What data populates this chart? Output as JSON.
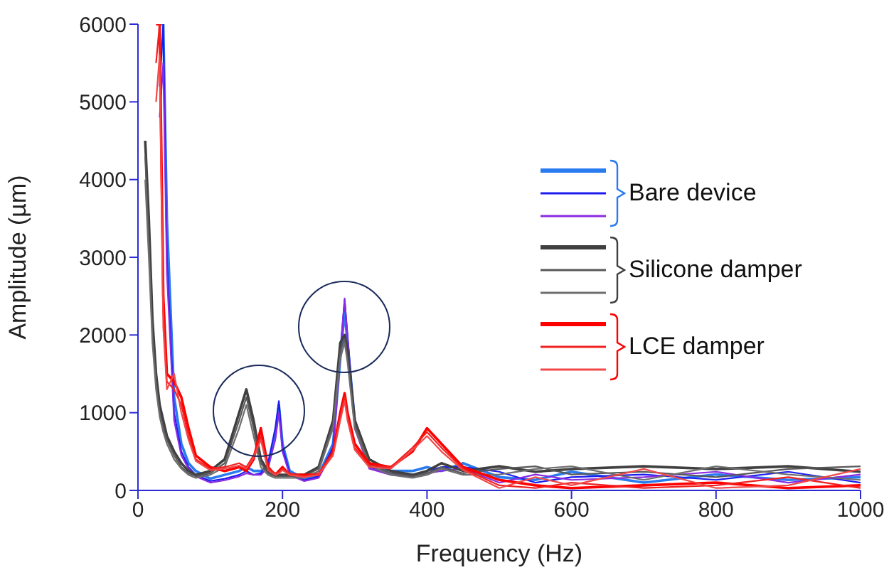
{
  "chart_data": {
    "type": "line",
    "xlabel": "Frequency (Hz)",
    "ylabel": "Amplitude (µm)",
    "x": [
      10,
      15,
      20,
      25,
      30,
      35,
      40,
      50,
      60,
      70,
      80,
      100,
      120,
      140,
      150,
      160,
      170,
      180,
      190,
      195,
      200,
      210,
      230,
      250,
      270,
      280,
      286,
      290,
      300,
      320,
      350,
      380,
      400,
      420,
      450,
      500,
      550,
      600,
      700,
      800,
      900,
      1000
    ],
    "xlim": [
      0,
      1000
    ],
    "xticks": [
      0,
      200,
      400,
      600,
      800,
      1000
    ],
    "ylim": [
      0,
      6000
    ],
    "yticks": [
      0,
      1000,
      2000,
      3000,
      4000,
      5000,
      6000
    ],
    "legend": "right",
    "series": [
      {
        "color": "#2a7bf0",
        "values": [
          null,
          null,
          null,
          null,
          6000,
          6000,
          3500,
          1200,
          600,
          350,
          250,
          150,
          200,
          250,
          300,
          250,
          250,
          300,
          700,
          1100,
          600,
          250,
          150,
          200,
          600,
          1700,
          2300,
          1900,
          900,
          350,
          250,
          250,
          300,
          250,
          350,
          170,
          135,
          240,
          100,
          205,
          135,
          170
        ]
      },
      {
        "name": "Bare device",
        "color": "#1c1cf0",
        "values": [
          null,
          null,
          null,
          null,
          5200,
          6000,
          3000,
          1000,
          500,
          300,
          200,
          120,
          150,
          200,
          250,
          200,
          220,
          350,
          800,
          1150,
          550,
          220,
          130,
          180,
          550,
          1800,
          2450,
          2000,
          850,
          300,
          220,
          200,
          250,
          300,
          300,
          240,
          100,
          170,
          205,
          135,
          240,
          100
        ]
      },
      {
        "color": "#8a2be2",
        "values": [
          null,
          null,
          null,
          null,
          4800,
          5500,
          2800,
          900,
          450,
          280,
          180,
          100,
          130,
          180,
          220,
          200,
          200,
          300,
          650,
          1000,
          500,
          200,
          120,
          160,
          500,
          1750,
          2470,
          1950,
          800,
          280,
          200,
          180,
          220,
          250,
          280,
          100,
          205,
          135,
          170,
          240,
          100,
          205
        ]
      },
      {
        "color": "#404040",
        "values": [
          4500,
          3500,
          2200,
          1500,
          1100,
          900,
          700,
          500,
          350,
          250,
          200,
          250,
          400,
          1000,
          1300,
          900,
          400,
          250,
          200,
          200,
          200,
          200,
          200,
          300,
          900,
          1900,
          2000,
          1800,
          900,
          400,
          250,
          200,
          250,
          350,
          250,
          310,
          240,
          275,
          310,
          275,
          310,
          240
        ]
      },
      {
        "name": "Silicone damper",
        "color": "#585858",
        "values": [
          4300,
          3200,
          2000,
          1400,
          1000,
          800,
          650,
          450,
          300,
          220,
          180,
          220,
          350,
          900,
          1200,
          800,
          350,
          220,
          180,
          180,
          180,
          180,
          180,
          280,
          850,
          1800,
          1950,
          1700,
          850,
          350,
          220,
          180,
          220,
          300,
          220,
          275,
          310,
          205,
          240,
          170,
          275,
          310
        ]
      },
      {
        "color": "#6e6e6e",
        "values": [
          4000,
          3000,
          1900,
          1300,
          950,
          750,
          600,
          400,
          280,
          200,
          160,
          200,
          300,
          800,
          1100,
          700,
          300,
          200,
          160,
          160,
          160,
          160,
          160,
          250,
          800,
          1700,
          1900,
          1650,
          800,
          320,
          200,
          160,
          200,
          280,
          200,
          205,
          275,
          310,
          135,
          310,
          205,
          135
        ]
      },
      {
        "color": "#ff0000",
        "values": [
          null,
          null,
          null,
          6000,
          6000,
          2500,
          1500,
          1400,
          1200,
          800,
          450,
          300,
          250,
          300,
          250,
          400,
          800,
          300,
          200,
          250,
          300,
          200,
          200,
          200,
          500,
          1000,
          1250,
          1000,
          600,
          350,
          300,
          500,
          800,
          600,
          300,
          135,
          65,
          30,
          65,
          100,
          30,
          65
        ]
      },
      {
        "name": "LCE damper",
        "color": "#f02020",
        "values": [
          null,
          null,
          null,
          5500,
          6000,
          2300,
          1400,
          1300,
          1100,
          700,
          400,
          280,
          300,
          350,
          300,
          450,
          700,
          280,
          220,
          230,
          280,
          220,
          180,
          220,
          480,
          950,
          1200,
          950,
          550,
          320,
          300,
          550,
          750,
          550,
          280,
          65,
          30,
          100,
          30,
          65,
          170,
          30
        ]
      },
      {
        "color": "#f24848",
        "values": [
          null,
          null,
          null,
          5000,
          5600,
          2100,
          1300,
          1500,
          1000,
          650,
          380,
          260,
          280,
          320,
          280,
          420,
          650,
          260,
          200,
          220,
          260,
          200,
          170,
          200,
          450,
          900,
          1150,
          900,
          520,
          300,
          280,
          520,
          700,
          500,
          260,
          30,
          170,
          65,
          275,
          30,
          65,
          275
        ]
      }
    ]
  }
}
